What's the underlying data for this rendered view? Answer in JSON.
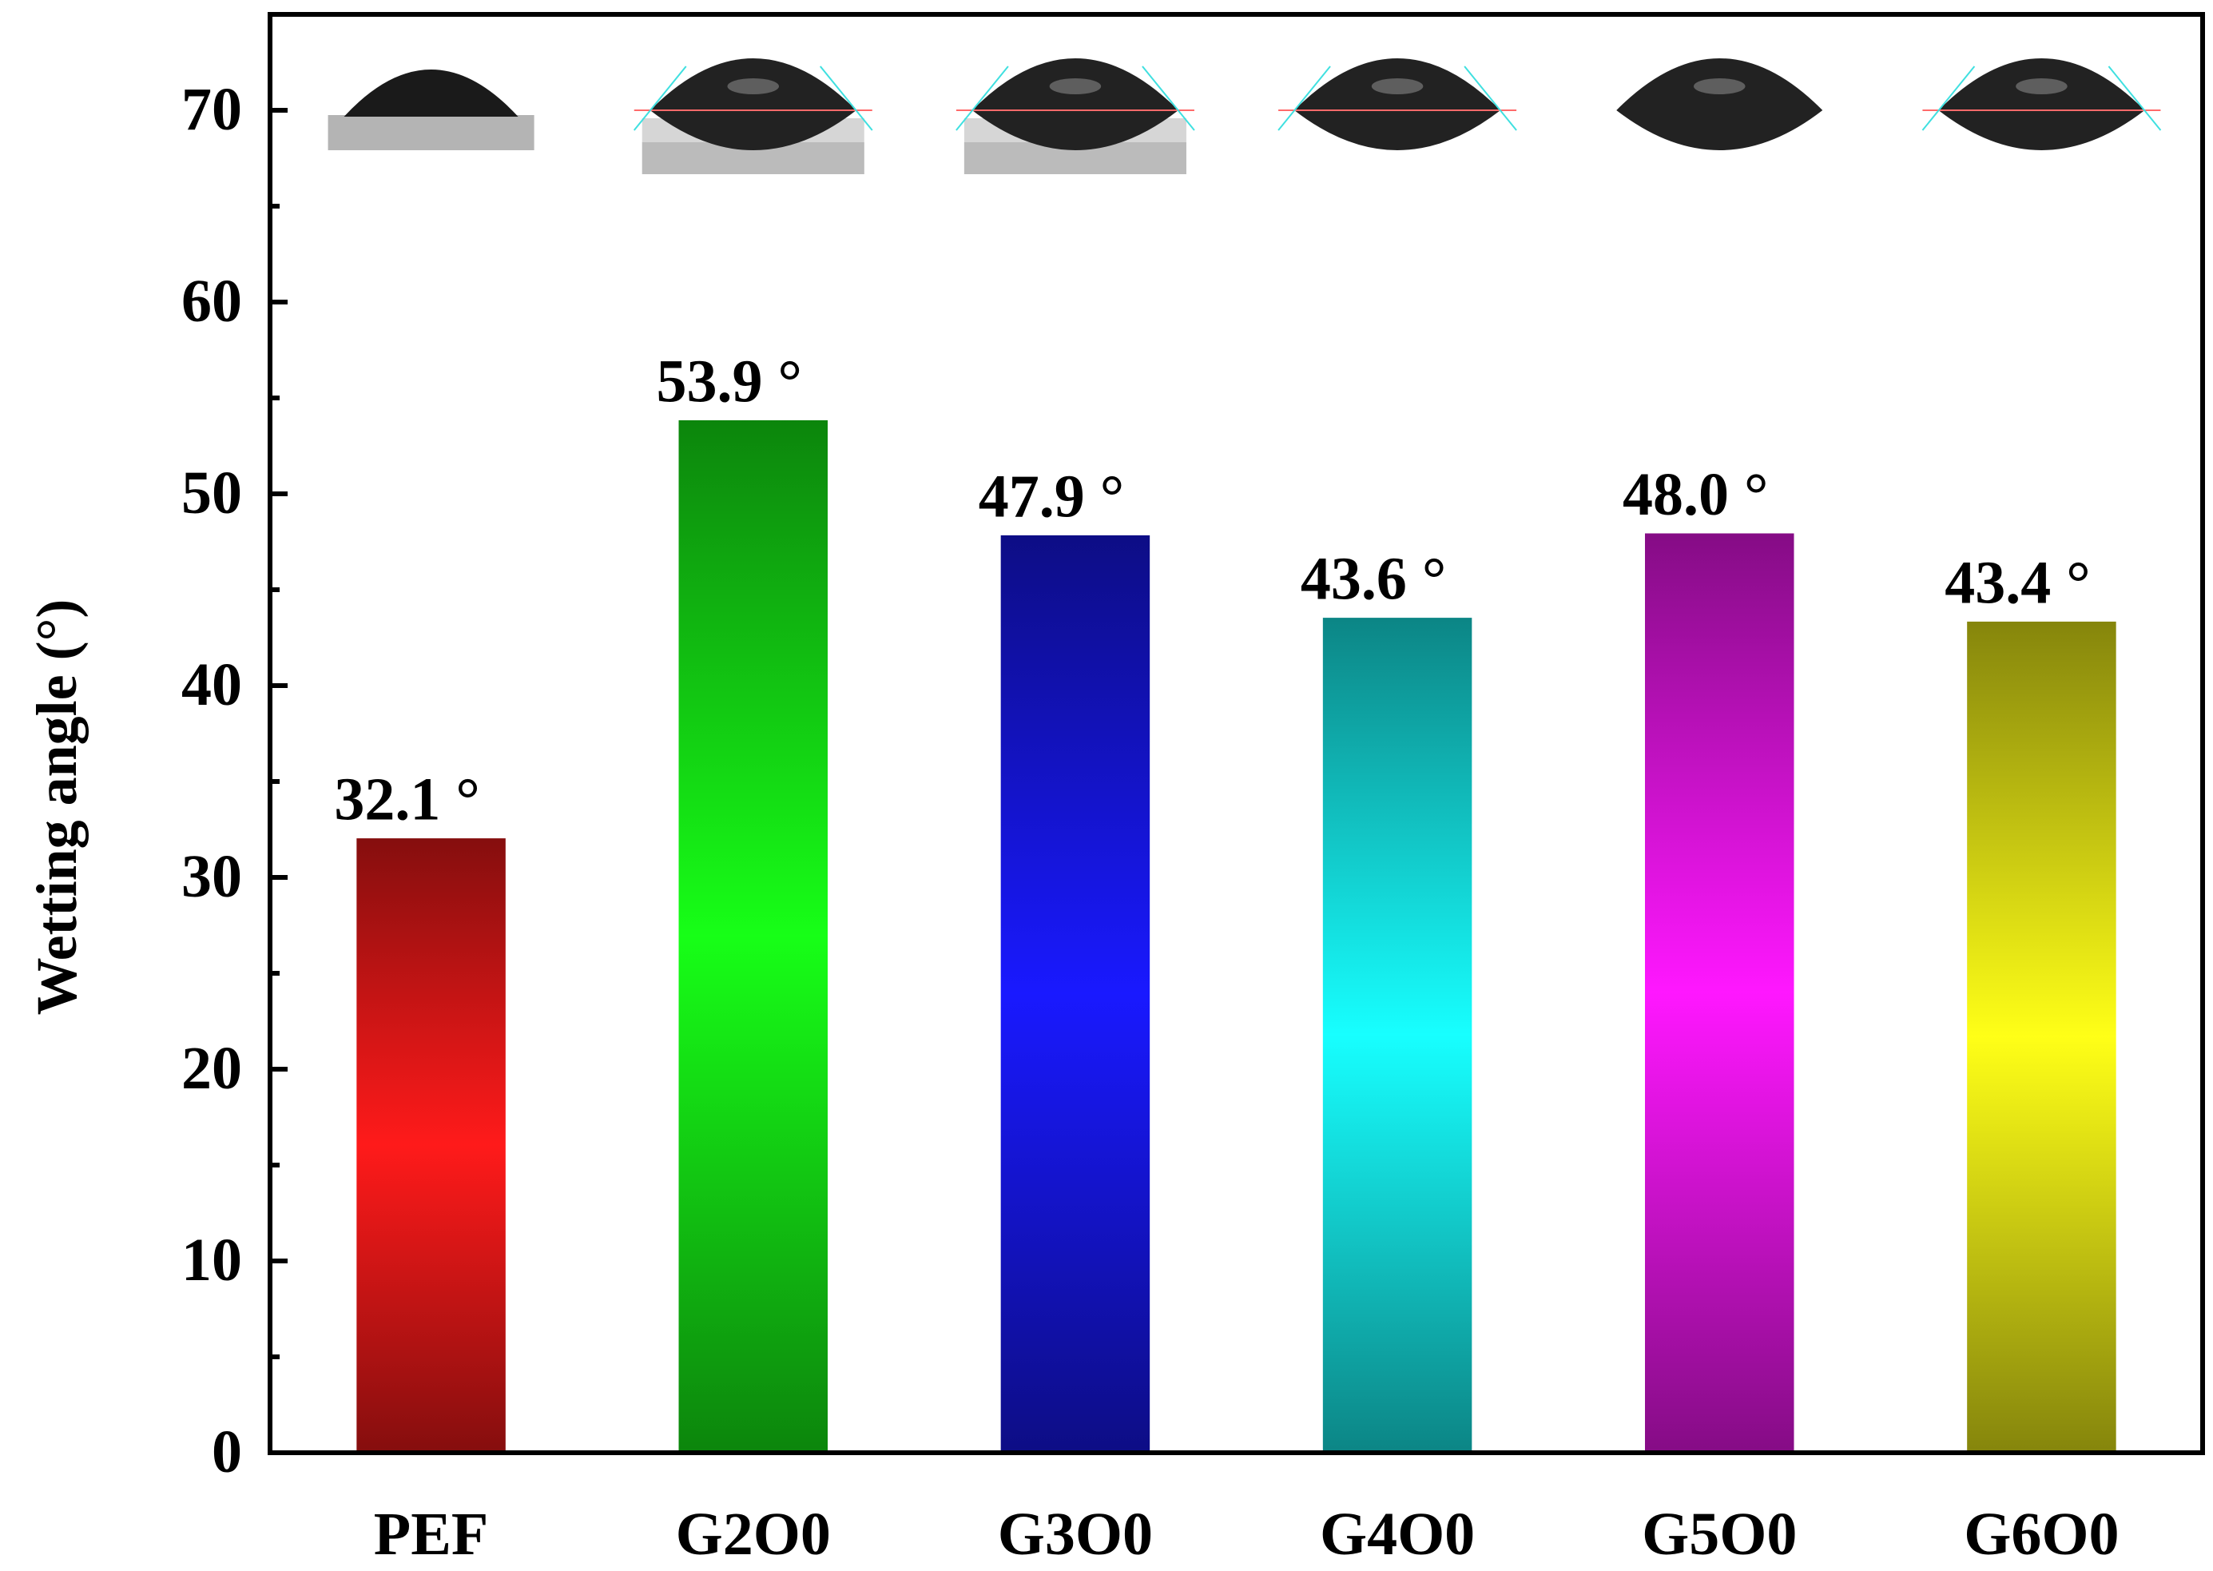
{
  "chart_data": {
    "type": "bar",
    "title": "",
    "xlabel": "",
    "ylabel": "Wetting angle (°)",
    "ylim": [
      0,
      75
    ],
    "yticks": [
      0,
      10,
      20,
      30,
      40,
      50,
      60,
      70
    ],
    "grid": false,
    "legend": "none",
    "categories": [
      "PEF",
      "G2O0",
      "G3O0",
      "G4O0",
      "G5O0",
      "G6O0"
    ],
    "values": [
      32.1,
      53.9,
      47.9,
      43.6,
      48.0,
      43.4
    ],
    "value_labels": [
      "32.1 °",
      "53.9 °",
      "47.9 °",
      "43.6 °",
      "48.0 °",
      "43.4 °"
    ],
    "colors": [
      "#ff1a1a",
      "#17ff17",
      "#1919ff",
      "#17ffff",
      "#ff17ff",
      "#ffff17"
    ],
    "inset_images": "droplet contact-angle photos above each bar"
  }
}
